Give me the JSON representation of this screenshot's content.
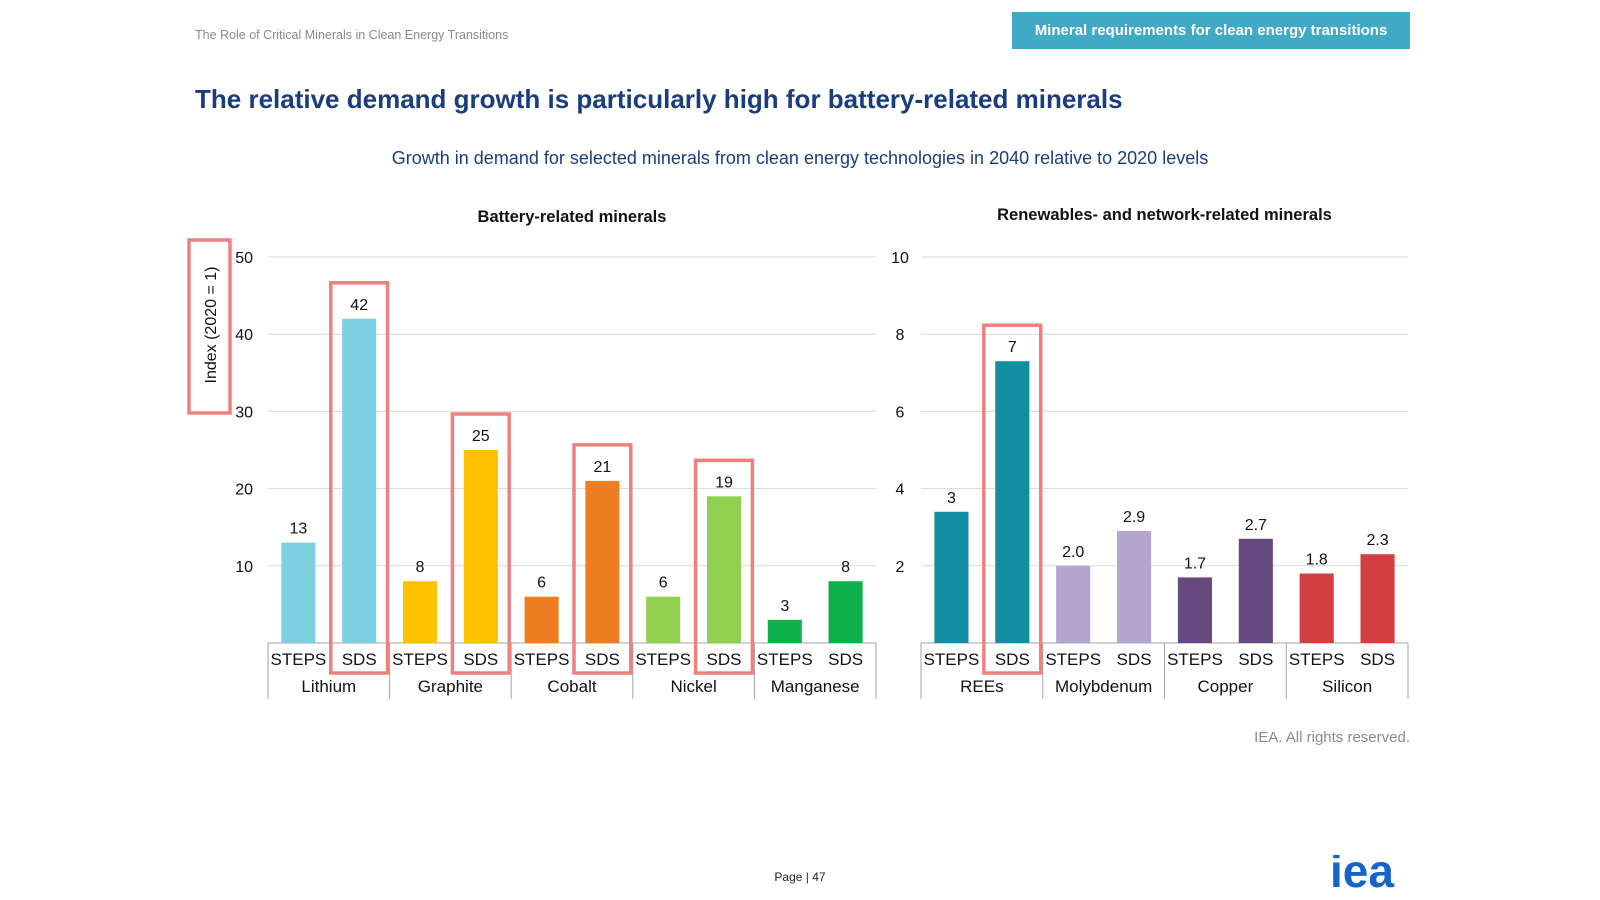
{
  "header": {
    "document_title": "The Role of Critical Minerals in Clean Energy Transitions",
    "section_badge": "Mineral requirements for clean energy transitions"
  },
  "headline": "The relative demand growth is particularly high for battery-related minerals",
  "subtitle": "Growth in demand for selected minerals from clean energy technologies in 2040 relative to 2020 levels",
  "footer": {
    "copyright": "IEA. All rights reserved.",
    "page_label": "Page | 47",
    "logo": "iea"
  },
  "chart_data": [
    {
      "type": "bar",
      "title": "Battery-related minerals",
      "ylabel": "Index (2020 = 1)",
      "ylim": [
        0,
        50
      ],
      "yticks": [
        10,
        20,
        30,
        40,
        50
      ],
      "grid": true,
      "groups": [
        {
          "name": "Lithium",
          "bars": [
            {
              "scenario": "STEPS",
              "value": 13,
              "label": "13",
              "color": "#7ecfe0"
            },
            {
              "scenario": "SDS",
              "value": 42,
              "label": "42",
              "color": "#7ecfe0",
              "highlighted": true
            }
          ]
        },
        {
          "name": "Graphite",
          "bars": [
            {
              "scenario": "STEPS",
              "value": 8,
              "label": "8",
              "color": "#ffc000"
            },
            {
              "scenario": "SDS",
              "value": 25,
              "label": "25",
              "color": "#ffc000",
              "highlighted": true
            }
          ]
        },
        {
          "name": "Cobalt",
          "bars": [
            {
              "scenario": "STEPS",
              "value": 6,
              "label": "6",
              "color": "#ed7d22"
            },
            {
              "scenario": "SDS",
              "value": 21,
              "label": "21",
              "color": "#ed7d22",
              "highlighted": true
            }
          ]
        },
        {
          "name": "Nickel",
          "bars": [
            {
              "scenario": "STEPS",
              "value": 6,
              "label": "6",
              "color": "#92d050"
            },
            {
              "scenario": "SDS",
              "value": 19,
              "label": "19",
              "color": "#92d050",
              "highlighted": true
            }
          ]
        },
        {
          "name": "Manganese",
          "bars": [
            {
              "scenario": "STEPS",
              "value": 3,
              "label": "3",
              "color": "#0db04b"
            },
            {
              "scenario": "SDS",
              "value": 8,
              "label": "8",
              "color": "#0db04b"
            }
          ]
        }
      ]
    },
    {
      "type": "bar",
      "title": "Renewables- and network-related minerals",
      "ylabel": "",
      "ylim": [
        0,
        10
      ],
      "yticks": [
        2,
        4,
        6,
        8,
        10
      ],
      "grid": true,
      "groups": [
        {
          "name": "REEs",
          "bars": [
            {
              "scenario": "STEPS",
              "value": 3.4,
              "label": "3",
              "color": "#138da1"
            },
            {
              "scenario": "SDS",
              "value": 7.3,
              "label": "7",
              "color": "#138da1",
              "highlighted": true
            }
          ]
        },
        {
          "name": "Molybdenum",
          "bars": [
            {
              "scenario": "STEPS",
              "value": 2.0,
              "label": "2.0",
              "color": "#b7a3cf"
            },
            {
              "scenario": "SDS",
              "value": 2.9,
              "label": "2.9",
              "color": "#b7a3cf"
            }
          ]
        },
        {
          "name": "Copper",
          "bars": [
            {
              "scenario": "STEPS",
              "value": 1.7,
              "label": "1.7",
              "color": "#65497f"
            },
            {
              "scenario": "SDS",
              "value": 2.7,
              "label": "2.7",
              "color": "#65497f"
            }
          ]
        },
        {
          "name": "Silicon",
          "bars": [
            {
              "scenario": "STEPS",
              "value": 1.8,
              "label": "1.8",
              "color": "#d13f43"
            },
            {
              "scenario": "SDS",
              "value": 2.3,
              "label": "2.3",
              "color": "#d13f43"
            }
          ]
        }
      ]
    }
  ],
  "highlight_color": "#f08080"
}
